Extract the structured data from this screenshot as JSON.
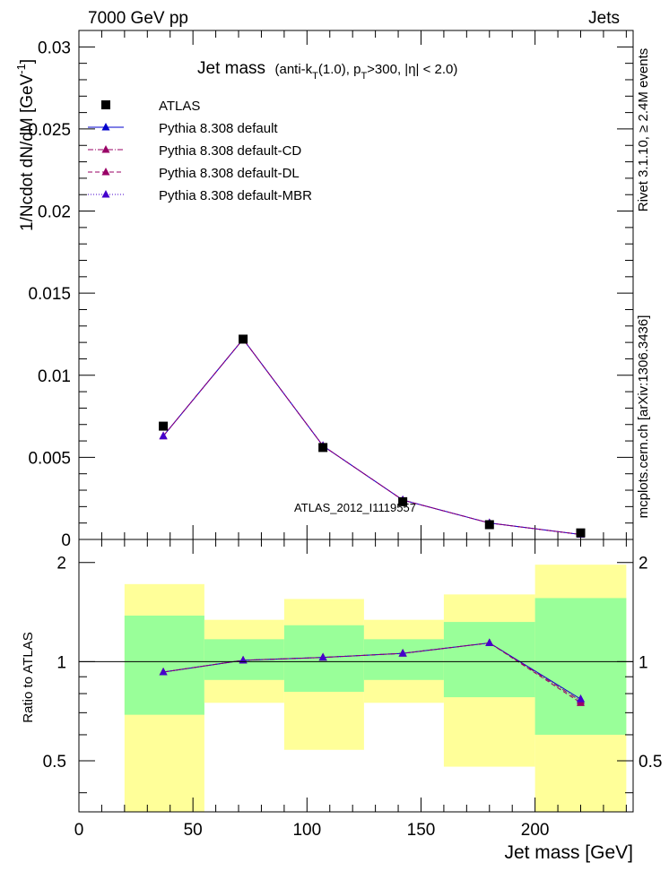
{
  "header": {
    "left": "7000 GeV pp",
    "right": "Jets",
    "title_main": "Jet mass",
    "title_sub": "(anti-k",
    "title_sub_T": "T",
    "title_sub_2": "(1.0), p",
    "title_sub_T2": "T",
    "title_sub_3": ">300, |η| < 2.0)"
  },
  "side_labels": {
    "rivet": "Rivet 3.1.10, ≥ 2.4M events",
    "mcplots": "mcplots.cern.ch [arXiv:1306.3436]"
  },
  "watermark": "ATLAS_2012_I1119557",
  "main_plot": {
    "ylabel_main": "1/Ncdot dN/dM [GeV",
    "ylabel_exp": "-1",
    "ylabel_close": "]",
    "yticks": [
      "0",
      "0.005",
      "0.01",
      "0.015",
      "0.02",
      "0.025",
      "0.03"
    ],
    "ylim": [
      0,
      0.031
    ]
  },
  "ratio_plot": {
    "ylabel": "Ratio to ATLAS",
    "yticks": [
      "0.5",
      "1",
      "2"
    ],
    "ylim": [
      0.35,
      2.35
    ]
  },
  "xaxis": {
    "label": "Jet mass [GeV]",
    "ticks": [
      "0",
      "50",
      "100",
      "150",
      "200"
    ],
    "xlim": [
      0,
      243
    ]
  },
  "colors": {
    "atlas": "#000000",
    "default": "#0000cc",
    "cd": "#990066",
    "dl": "#990066",
    "mbr": "#4400cc",
    "band_green": "#99ff99",
    "band_yellow": "#ffff99"
  },
  "chart_data": {
    "type": "line",
    "xlabel": "Jet mass [GeV]",
    "ylabel": "1/Ncdot dN/dM [GeV^-1]",
    "legend_position": "top-left",
    "bins": [
      [
        20,
        55
      ],
      [
        55,
        90
      ],
      [
        90,
        125
      ],
      [
        125,
        160
      ],
      [
        160,
        200
      ],
      [
        200,
        240
      ]
    ],
    "x": [
      37,
      72,
      107,
      142,
      180,
      220
    ],
    "series": [
      {
        "name": "ATLAS",
        "marker": "square",
        "values": [
          0.0069,
          0.0122,
          0.0056,
          0.0023,
          0.0009,
          0.0004
        ]
      },
      {
        "name": "Pythia 8.308 default",
        "marker": "triangle",
        "style": "solid",
        "values": [
          0.0063,
          0.0122,
          0.0057,
          0.0024,
          0.001,
          0.0003
        ]
      },
      {
        "name": "Pythia 8.308 default-CD",
        "marker": "triangle",
        "style": "dashdot",
        "values": [
          0.0063,
          0.0122,
          0.0057,
          0.0024,
          0.001,
          0.0003
        ]
      },
      {
        "name": "Pythia 8.308 default-DL",
        "marker": "triangle",
        "style": "dashed",
        "values": [
          0.0063,
          0.0122,
          0.0057,
          0.0024,
          0.001,
          0.0003
        ]
      },
      {
        "name": "Pythia 8.308 default-MBR",
        "marker": "triangle",
        "style": "dotted",
        "values": [
          0.0063,
          0.0122,
          0.0057,
          0.0024,
          0.001,
          0.0003
        ]
      }
    ],
    "ratio": {
      "ylabel": "Ratio to ATLAS",
      "series": [
        {
          "name": "Pythia 8.308 default",
          "values": [
            0.93,
            1.01,
            1.03,
            1.06,
            1.14,
            0.77
          ]
        },
        {
          "name": "Pythia 8.308 default-CD",
          "values": [
            0.93,
            1.01,
            1.03,
            1.06,
            1.14,
            0.76
          ]
        },
        {
          "name": "Pythia 8.308 default-DL",
          "values": [
            0.93,
            1.01,
            1.03,
            1.06,
            1.14,
            0.75
          ]
        },
        {
          "name": "Pythia 8.308 default-MBR",
          "values": [
            0.93,
            1.01,
            1.03,
            1.06,
            1.14,
            0.77
          ]
        }
      ],
      "band_green": [
        [
          0.69,
          1.38
        ],
        [
          0.88,
          1.17
        ],
        [
          0.81,
          1.29
        ],
        [
          0.88,
          1.17
        ],
        [
          0.78,
          1.32
        ],
        [
          0.6,
          1.56
        ]
      ],
      "band_yellow": [
        [
          0.35,
          1.72
        ],
        [
          0.75,
          1.34
        ],
        [
          0.54,
          1.55
        ],
        [
          0.75,
          1.34
        ],
        [
          0.48,
          1.6
        ],
        [
          0.35,
          1.97
        ]
      ]
    }
  }
}
